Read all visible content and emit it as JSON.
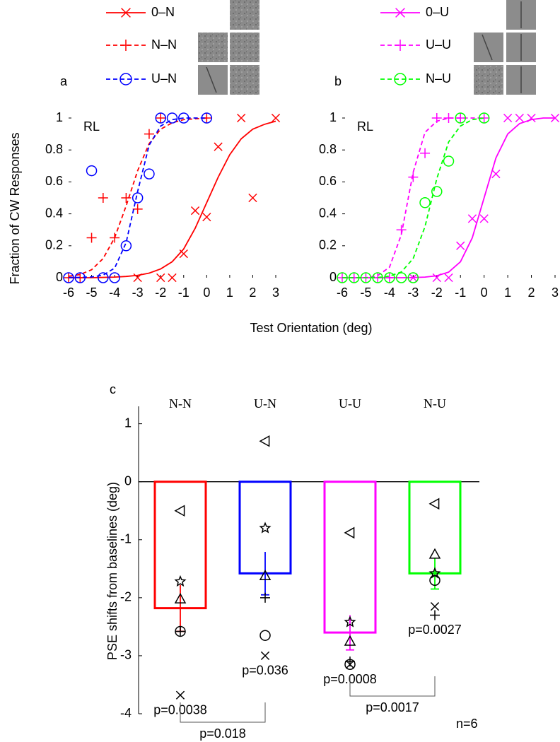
{
  "chart_data": [
    {
      "type": "psychometric",
      "panel": "a",
      "title": "RL",
      "ylabel": "Fraction of CW Responses",
      "xlabel": "Test Orientation (deg)",
      "xlim": [
        -6,
        3
      ],
      "ylim": [
        0,
        1
      ],
      "xticks": [
        -6,
        -5,
        -4,
        -3,
        -2,
        -1,
        0,
        1,
        2,
        3
      ],
      "yticks": [
        0,
        0.2,
        0.4,
        0.6,
        0.8,
        1
      ],
      "fit_x": [
        -6,
        -5.5,
        -5,
        -4.5,
        -4,
        -3.5,
        -3,
        -2.5,
        -2,
        -1.5,
        -1,
        -0.5,
        0,
        0.5,
        1,
        1.5,
        2,
        2.5,
        3
      ],
      "series": [
        {
          "name": "0–N",
          "color": "#ff0000",
          "marker": "x",
          "dashed": false,
          "x": [
            -3,
            -2,
            -1.5,
            -1,
            -0.5,
            0,
            0.5,
            1.5,
            2,
            3
          ],
          "values": [
            0,
            0,
            0,
            0.15,
            0.42,
            0.38,
            0.82,
            1,
            0.5,
            1
          ],
          "fit": [
            0,
            0,
            0,
            0.002,
            0.004,
            0.008,
            0.015,
            0.029,
            0.055,
            0.1,
            0.18,
            0.31,
            0.47,
            0.63,
            0.77,
            0.87,
            0.93,
            0.96,
            0.98
          ]
        },
        {
          "name": "N–N",
          "color": "#ff0000",
          "marker": "+",
          "dashed": true,
          "x": [
            -6,
            -5.5,
            -5,
            -4.5,
            -4,
            -3.5,
            -3,
            -2.5,
            -2,
            0
          ],
          "values": [
            0,
            0,
            0.25,
            0.5,
            0.25,
            0.5,
            0.43,
            0.9,
            1,
            1
          ],
          "fit": [
            0.009,
            0.02,
            0.05,
            0.12,
            0.25,
            0.45,
            0.67,
            0.84,
            0.93,
            0.97,
            0.99,
            0.995,
            1,
            null,
            null,
            null,
            null,
            null,
            null
          ]
        },
        {
          "name": "U–N",
          "color": "#0000ff",
          "marker": "o",
          "dashed": true,
          "x": [
            -6,
            -5.5,
            -5,
            -4.5,
            -4,
            -3.5,
            -3,
            -2.5,
            -2,
            -1.5,
            -1,
            0
          ],
          "values": [
            0,
            0,
            0.67,
            0,
            0,
            0.2,
            0.5,
            0.65,
            1,
            1,
            1,
            1
          ],
          "fit": [
            0.001,
            0.002,
            0.005,
            0.016,
            0.06,
            0.22,
            0.54,
            0.83,
            0.95,
            0.99,
            1,
            1,
            1,
            null,
            null,
            null,
            null,
            null,
            null
          ]
        }
      ]
    },
    {
      "type": "psychometric",
      "panel": "b",
      "title": "RL",
      "xlim": [
        -6,
        3
      ],
      "ylim": [
        0,
        1
      ],
      "xticks": [
        -6,
        -5,
        -4,
        -3,
        -2,
        -1,
        0,
        1,
        2,
        3
      ],
      "yticks": [
        0,
        0.2,
        0.4,
        0.6,
        0.8,
        1
      ],
      "fit_x": [
        -6,
        -5.5,
        -5,
        -4.5,
        -4,
        -3.5,
        -3,
        -2.5,
        -2,
        -1.5,
        -1,
        -0.5,
        0,
        0.5,
        1,
        1.5,
        2,
        2.5,
        3
      ],
      "series": [
        {
          "name": "0–U",
          "color": "#ff00ff",
          "marker": "x",
          "dashed": false,
          "x": [
            -3,
            -2,
            -1.5,
            -1,
            -0.5,
            0,
            0.5,
            1,
            1.5,
            2,
            3
          ],
          "values": [
            0,
            0,
            0,
            0.2,
            0.37,
            0.37,
            0.65,
            1,
            1,
            1,
            1
          ],
          "fit": [
            0,
            0,
            0,
            0,
            0,
            0,
            0.001,
            0.004,
            0.012,
            0.035,
            0.1,
            0.25,
            0.5,
            0.75,
            0.9,
            0.965,
            0.99,
            1,
            1
          ]
        },
        {
          "name": "U–U",
          "color": "#ff00ff",
          "marker": "+",
          "dashed": true,
          "x": [
            -6,
            -5.5,
            -5,
            -4.5,
            -4,
            -3.5,
            -3,
            -2.5,
            -2,
            -1.5,
            -1,
            0
          ],
          "values": [
            0,
            0,
            0,
            0,
            0,
            0.3,
            0.63,
            0.78,
            1,
            1,
            1,
            1
          ],
          "fit": [
            0,
            0,
            0,
            0.013,
            0.066,
            0.27,
            0.66,
            0.91,
            0.98,
            1,
            1,
            1,
            1,
            null,
            null,
            null,
            null,
            null,
            null
          ]
        },
        {
          "name": "N–U",
          "color": "#00ff00",
          "marker": "o",
          "dashed": true,
          "x": [
            -6,
            -5.5,
            -5,
            -4.5,
            -4,
            -3.5,
            -3,
            -2.5,
            -2,
            -1.5,
            -1,
            0
          ],
          "values": [
            0,
            0,
            0,
            0,
            0,
            0,
            0,
            0.47,
            0.54,
            0.73,
            1,
            1
          ],
          "fit": [
            0,
            0,
            0,
            0.001,
            0.01,
            0.036,
            0.12,
            0.32,
            0.62,
            0.85,
            0.95,
            0.99,
            1,
            null,
            null,
            null,
            null,
            null,
            null
          ]
        }
      ]
    },
    {
      "type": "bar",
      "panel": "c",
      "ylabel": "PSE shifts from baselines (deg)",
      "ylim": [
        -4,
        1.3
      ],
      "yticks": [
        -4,
        -3,
        -2,
        -1,
        0,
        1
      ],
      "categories": [
        "N-N",
        "U-N",
        "U-U",
        "N-U"
      ],
      "colors": [
        "#ff0000",
        "#0000ff",
        "#ff00ff",
        "#00ff00"
      ],
      "values": [
        -2.18,
        -1.58,
        -2.6,
        -1.58
      ],
      "errors": [
        0.4,
        0.37,
        0.3,
        0.27
      ],
      "p_labels": [
        "p=0.0038",
        "p=0.036",
        "p=0.0008",
        "p=0.0027"
      ],
      "subjects": [
        {
          "marker": "triangle-left",
          "values": [
            -0.5,
            0.7,
            -0.88,
            -0.38
          ]
        },
        {
          "marker": "star",
          "values": [
            -1.72,
            -0.8,
            -2.42,
            -1.58
          ]
        },
        {
          "marker": "triangle",
          "values": [
            -2.02,
            -1.62,
            -2.75,
            -1.25
          ]
        },
        {
          "marker": "o",
          "values": [
            -2.58,
            -2.65,
            -3.15,
            -1.7
          ]
        },
        {
          "marker": "+",
          "values": [
            -2.58,
            -2.0,
            -3.1,
            -2.3
          ]
        },
        {
          "marker": "x",
          "values": [
            -3.68,
            -3.0,
            -3.15,
            -2.15
          ]
        }
      ],
      "comparisons": [
        {
          "pair": [
            0,
            1
          ],
          "label": "p=0.018"
        },
        {
          "pair": [
            2,
            3
          ],
          "label": "p=0.0017"
        }
      ],
      "annotation": "n=6"
    }
  ]
}
